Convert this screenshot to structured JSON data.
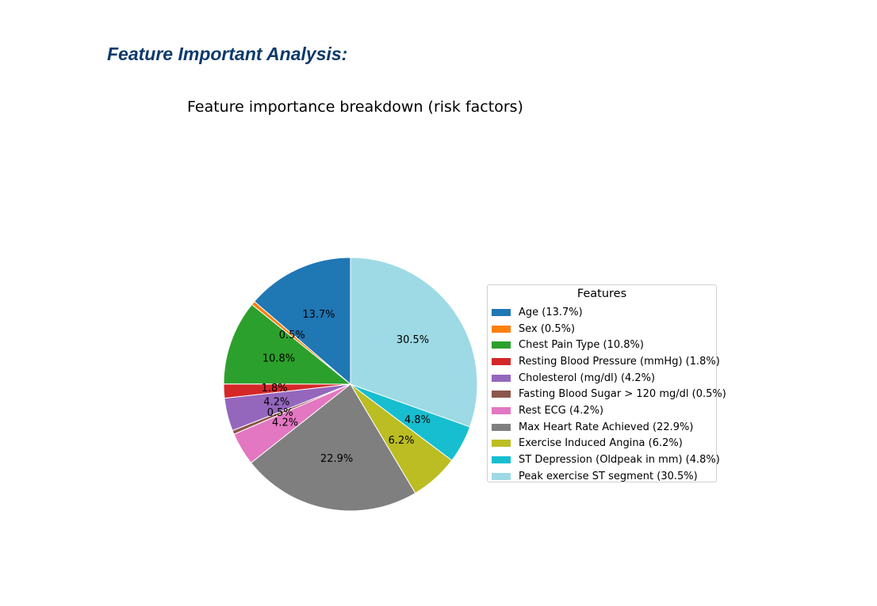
{
  "page": {
    "heading": "Feature Important Analysis:"
  },
  "chart_data": {
    "type": "pie",
    "title": "Feature importance breakdown (risk factors)",
    "legend_title": "Features",
    "legend_position": "right",
    "start_angle_deg": 90,
    "direction": "counterclockwise",
    "slices": [
      {
        "label": "Age",
        "value": 13.7,
        "color": "#1f77b4",
        "legend": "Age (13.7%)",
        "pct_label": "13.7%"
      },
      {
        "label": "Sex",
        "value": 0.5,
        "color": "#ff7f0e",
        "legend": "Sex (0.5%)",
        "pct_label": "0.5%"
      },
      {
        "label": "Chest Pain Type",
        "value": 10.8,
        "color": "#2ca02c",
        "legend": "Chest Pain Type (10.8%)",
        "pct_label": "10.8%"
      },
      {
        "label": "Resting Blood Pressure (mmHg)",
        "value": 1.8,
        "color": "#d62728",
        "legend": "Resting Blood Pressure (mmHg) (1.8%)",
        "pct_label": "1.8%"
      },
      {
        "label": "Cholesterol (mg/dl)",
        "value": 4.2,
        "color": "#9467bd",
        "legend": "Cholesterol (mg/dl) (4.2%)",
        "pct_label": "4.2%"
      },
      {
        "label": "Fasting Blood Sugar > 120 mg/dl",
        "value": 0.5,
        "color": "#8c564b",
        "legend": "Fasting Blood Sugar > 120 mg/dl (0.5%)",
        "pct_label": "0.5%"
      },
      {
        "label": "Rest ECG",
        "value": 4.2,
        "color": "#e377c2",
        "legend": "Rest ECG (4.2%)",
        "pct_label": "4.2%"
      },
      {
        "label": "Max Heart Rate Achieved",
        "value": 22.9,
        "color": "#7f7f7f",
        "legend": "Max Heart Rate Achieved (22.9%)",
        "pct_label": "22.9%"
      },
      {
        "label": "Exercise Induced Angina",
        "value": 6.2,
        "color": "#bcbd22",
        "legend": "Exercise Induced Angina (6.2%)",
        "pct_label": "6.2%"
      },
      {
        "label": "ST Depression (Oldpeak in mm)",
        "value": 4.8,
        "color": "#17becf",
        "legend": "ST Depression (Oldpeak in mm) (4.8%)",
        "pct_label": "4.8%"
      },
      {
        "label": "Peak exercise ST segment",
        "value": 30.5,
        "color": "#9edae5",
        "legend": "Peak exercise ST segment (30.5%)",
        "pct_label": "30.5%"
      }
    ]
  }
}
